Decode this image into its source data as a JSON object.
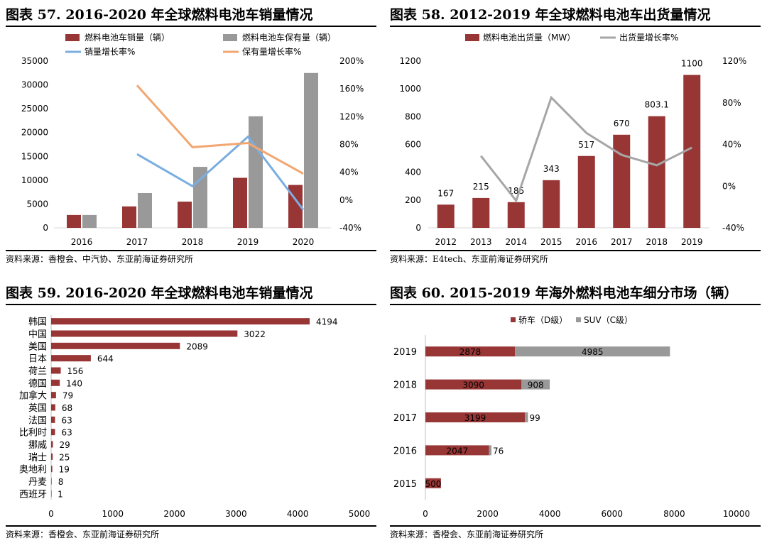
{
  "colors": {
    "bar_red": "#983535",
    "bar_gray": "#999999",
    "line_blue": "#7aaee0",
    "line_orange": "#f2a772",
    "line_gray": "#a6a6a6"
  },
  "chart_data": [
    {
      "type": "bar",
      "panel_title": "图表 57. 2016-2020 年全球燃料电池车销量情况",
      "source": "资料来源：香橙会、中汽协、东亚前海证券研究所",
      "categories": [
        "2016",
        "2017",
        "2018",
        "2019",
        "2020"
      ],
      "series": [
        {
          "name": "燃料电池车销量（辆）",
          "type": "bar",
          "axis": "left",
          "values": [
            2700,
            4500,
            5500,
            10500,
            9000
          ]
        },
        {
          "name": "燃料电池车保有量（辆）",
          "type": "bar",
          "axis": "left",
          "values": [
            2700,
            7300,
            12800,
            23400,
            32500
          ]
        },
        {
          "name": "销量增长率%",
          "type": "line",
          "axis": "right",
          "values": [
            null,
            66,
            20,
            91,
            -14
          ]
        },
        {
          "name": "保有量增长率%",
          "type": "line",
          "axis": "right",
          "values": [
            null,
            165,
            76,
            82,
            38
          ]
        }
      ],
      "ylim": [
        0,
        35000
      ],
      "yticks": [
        "0",
        "5000",
        "10000",
        "15000",
        "20000",
        "25000",
        "30000",
        "35000"
      ],
      "y2lim": [
        -40,
        200
      ],
      "y2ticks": [
        "-40%",
        "0%",
        "40%",
        "80%",
        "120%",
        "160%",
        "200%"
      ],
      "legend": "top"
    },
    {
      "type": "bar",
      "panel_title": "图表 58. 2012-2019 年全球燃料电池车出货量情况",
      "source": "资料来源：E4tech、东亚前海证券研究所",
      "categories": [
        "2012",
        "2013",
        "2014",
        "2015",
        "2016",
        "2017",
        "2018",
        "2019"
      ],
      "series": [
        {
          "name": "燃料电池出货量（MW）",
          "type": "bar",
          "axis": "left",
          "values": [
            167,
            215,
            185,
            343,
            517,
            670,
            803.1,
            1100
          ],
          "labels": [
            "167",
            "215",
            "185",
            "343",
            "517",
            "670",
            "803.1",
            "1100"
          ]
        },
        {
          "name": "出货量增长率%",
          "type": "line",
          "axis": "right",
          "values": [
            null,
            29,
            -14,
            85,
            51,
            30,
            20,
            37
          ]
        }
      ],
      "ylim": [
        0,
        1200
      ],
      "yticks": [
        "0",
        "200",
        "400",
        "600",
        "800",
        "1000",
        "1200"
      ],
      "y2lim": [
        -40,
        120
      ],
      "y2ticks": [
        "-40%",
        "0%",
        "40%",
        "80%",
        "120%"
      ],
      "legend": "top"
    },
    {
      "type": "bar",
      "orientation": "horizontal",
      "panel_title": "图表 59. 2016-2020 年全球燃料电池车销量情况",
      "source": "资料来源：香橙会、东亚前海证券研究所",
      "categories": [
        "韩国",
        "中国",
        "美国",
        "日本",
        "荷兰",
        "德国",
        "加拿大",
        "英国",
        "法国",
        "比利时",
        "挪威",
        "瑞士",
        "奥地利",
        "丹麦",
        "西班牙"
      ],
      "values": [
        4194,
        3022,
        2089,
        644,
        156,
        140,
        79,
        68,
        63,
        63,
        29,
        25,
        19,
        8,
        1
      ],
      "labels": [
        "4194",
        "3022",
        "2089",
        "644",
        "156",
        "140",
        "79",
        "68",
        "63",
        "63",
        "29",
        "25",
        "19",
        "8",
        "1"
      ],
      "xlim": [
        0,
        5000
      ],
      "xticks": [
        "0",
        "1000",
        "2000",
        "3000",
        "4000",
        "5000"
      ]
    },
    {
      "type": "bar",
      "orientation": "horizontal",
      "stacked": true,
      "panel_title": "图表 60. 2015-2019 年海外燃料电池车细分市场（辆）",
      "source": "资料来源：香橙会、东亚前海证券研究所",
      "categories": [
        "2019",
        "2018",
        "2017",
        "2016",
        "2015"
      ],
      "series": [
        {
          "name": "轿车（D级）",
          "values": [
            2878,
            3090,
            3199,
            2047,
            500
          ],
          "labels": [
            "2878",
            "3090",
            "3199",
            "2047",
            "500"
          ]
        },
        {
          "name": "SUV（C级）",
          "values": [
            4985,
            908,
            99,
            76,
            0
          ],
          "labels": [
            "4985",
            "908",
            "99",
            "76",
            ""
          ]
        }
      ],
      "xlim": [
        0,
        10000
      ],
      "xticks": [
        "0",
        "2000",
        "4000",
        "6000",
        "8000",
        "10000"
      ],
      "legend": "top"
    }
  ]
}
